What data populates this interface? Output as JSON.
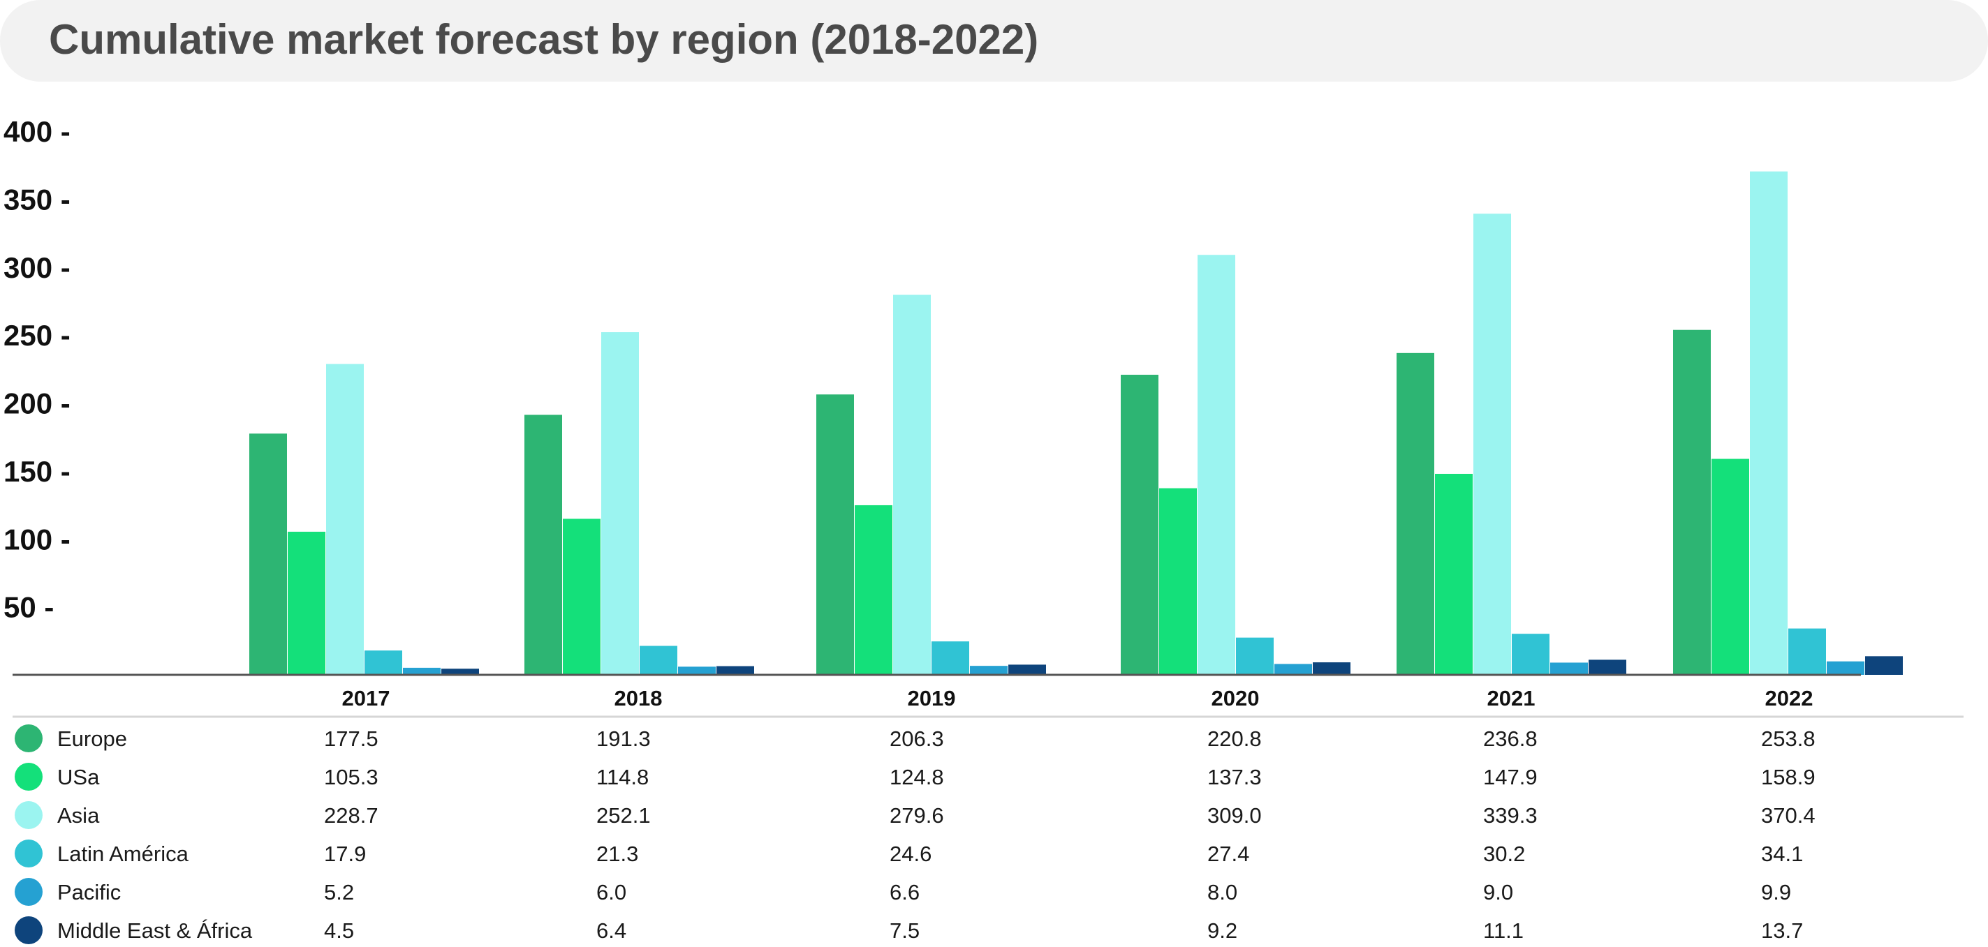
{
  "chart_data": {
    "type": "bar",
    "title": "Cumulative market forecast by region (2018-2022)",
    "xlabel": "",
    "ylabel": "",
    "ylim": [
      0,
      400
    ],
    "yticks": [
      50,
      100,
      150,
      200,
      250,
      300,
      350,
      400
    ],
    "tick_suffix": " -",
    "categories": [
      "2017",
      "2018",
      "2019",
      "2020",
      "2021",
      "2022"
    ],
    "grid": false,
    "legend": "table-below",
    "series": [
      {
        "name": "Europe",
        "color": "#2db573",
        "values": [
          "177.5",
          "191.3",
          "206.3",
          "220.8",
          "236.8",
          "253.8"
        ]
      },
      {
        "name": "USa",
        "color": "#14e07a",
        "values": [
          "105.3",
          "114.8",
          "124.8",
          "137.3",
          "147.9",
          "158.9"
        ]
      },
      {
        "name": "Asia",
        "color": "#9bf4f0",
        "values": [
          "228.7",
          "252.1",
          "279.6",
          "309.0",
          "339.3",
          "370.4"
        ]
      },
      {
        "name": "Latin América",
        "color": "#30c3d4",
        "values": [
          "17.9",
          "21.3",
          "24.6",
          "27.4",
          "30.2",
          "34.1"
        ]
      },
      {
        "name": "Pacific",
        "color": "#25a1d2",
        "values": [
          "5.2",
          "6.0",
          "6.6",
          "8.0",
          "9.0",
          "9.9"
        ]
      },
      {
        "name": "Middle East & África",
        "color": "#0e447c",
        "values": [
          "4.5",
          "6.4",
          "7.5",
          "9.2",
          "11.1",
          "13.7"
        ]
      }
    ]
  }
}
